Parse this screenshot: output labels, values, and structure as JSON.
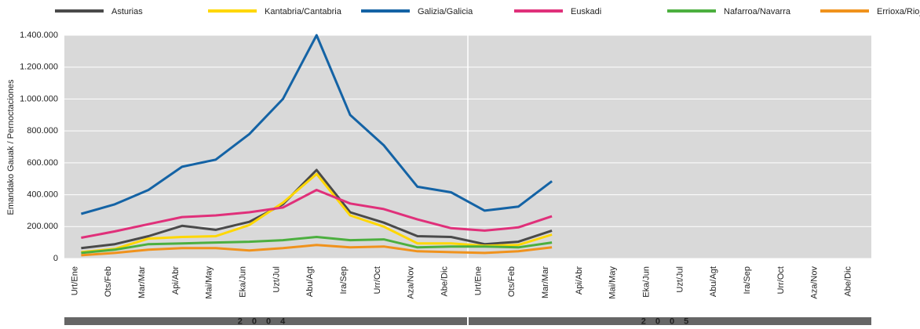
{
  "chart_data": {
    "type": "line",
    "y_label": "Emandako Gauak / Pernoctaciones",
    "categories": [
      "Urt/Ene",
      "Ots/Feb",
      "Mar/Mar",
      "Api/Abr",
      "Mai/May",
      "Eka/Jun",
      "Uzt/Jul",
      "Abu/Agt",
      "Ira/Sep",
      "Urr/Oct",
      "Aza/Nov",
      "Abe/Dic",
      "Urt/Ene",
      "Ots/Feb",
      "Mar/Mar",
      "Api/Abr",
      "Mai/May",
      "Eka/Jun",
      "Uzt/Jul",
      "Abu/Agt",
      "Ira/Sep",
      "Urr/Oct",
      "Aza/Nov",
      "Abe/Dic"
    ],
    "year_labels": [
      "2004",
      "2005"
    ],
    "series": [
      {
        "name": "Asturias",
        "color": "#4a4a4a",
        "values": [
          65000,
          90000,
          140000,
          205000,
          180000,
          230000,
          340000,
          555000,
          290000,
          225000,
          140000,
          135000,
          90000,
          105000,
          175000,
          null,
          null,
          null,
          null,
          null,
          null,
          null,
          null,
          null
        ]
      },
      {
        "name": "Kantabria/Cantabria",
        "color": "#ffd700",
        "values": [
          40000,
          60000,
          125000,
          135000,
          140000,
          210000,
          350000,
          530000,
          270000,
          200000,
          95000,
          95000,
          80000,
          85000,
          150000,
          null,
          null,
          null,
          null,
          null,
          null,
          null,
          null,
          null
        ]
      },
      {
        "name": "Galizia/Galicia",
        "color": "#1463a5",
        "values": [
          280000,
          340000,
          430000,
          575000,
          620000,
          780000,
          1000000,
          1400000,
          900000,
          710000,
          450000,
          415000,
          300000,
          325000,
          485000,
          null,
          null,
          null,
          null,
          null,
          null,
          null,
          null,
          null
        ]
      },
      {
        "name": "Euskadi",
        "color": "#e0307a",
        "values": [
          130000,
          170000,
          215000,
          260000,
          270000,
          290000,
          320000,
          430000,
          345000,
          310000,
          245000,
          190000,
          175000,
          195000,
          265000,
          null,
          null,
          null,
          null,
          null,
          null,
          null,
          null,
          null
        ]
      },
      {
        "name": "Nafarroa/Navarra",
        "color": "#4caf3f",
        "values": [
          35000,
          55000,
          90000,
          95000,
          100000,
          105000,
          115000,
          135000,
          115000,
          120000,
          70000,
          75000,
          75000,
          70000,
          100000,
          null,
          null,
          null,
          null,
          null,
          null,
          null,
          null,
          null
        ]
      },
      {
        "name": "Errioxa/Rioja",
        "color": "#f0921c",
        "values": [
          20000,
          35000,
          55000,
          65000,
          65000,
          50000,
          65000,
          85000,
          70000,
          75000,
          45000,
          40000,
          35000,
          45000,
          70000,
          null,
          null,
          null,
          null,
          null,
          null,
          null,
          null,
          null
        ]
      }
    ],
    "ylim": [
      0,
      1400000
    ],
    "yticks": [
      0,
      {
        "value": 200000,
        "label": "200.000"
      },
      {
        "value": 400000,
        "label": "400.000"
      },
      {
        "value": 600000,
        "label": "600.000"
      },
      {
        "value": 800000,
        "label": "800.000"
      },
      {
        "value": 1000000,
        "label": "1.000.000"
      },
      {
        "value": 1200000,
        "label": "1.200.000"
      },
      {
        "value": 1400000,
        "label": "1.400.000"
      }
    ],
    "grid": true
  }
}
